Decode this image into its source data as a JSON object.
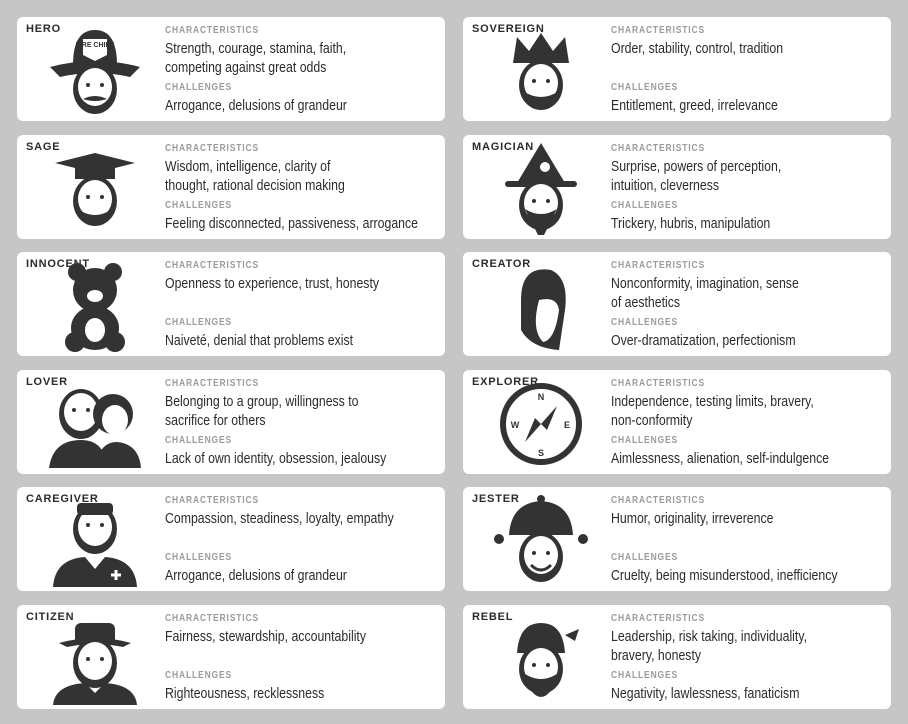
{
  "labels": {
    "characteristics": "CHARACTERISTICS",
    "challenges": "CHALLENGES"
  },
  "archetypes": [
    {
      "name": "HERO",
      "icon": "firefighter-icon",
      "characteristics": "Strength, courage, stamina, faith,\ncompeting against great odds",
      "challenges": "Arrogance, delusions of grandeur",
      "badge": "FIRE CHIEF"
    },
    {
      "name": "SOVEREIGN",
      "icon": "king-icon",
      "characteristics": "Order, stability, control, tradition",
      "challenges": "Entitlement, greed, irrelevance"
    },
    {
      "name": "SAGE",
      "icon": "graduate-icon",
      "characteristics": "Wisdom, intelligence, clarity of\nthought, rational decision making",
      "challenges": "Feeling disconnected, passiveness, arrogance"
    },
    {
      "name": "MAGICIAN",
      "icon": "wizard-icon",
      "characteristics": "Surprise, powers of perception,\nintuition, cleverness",
      "challenges": "Trickery, hubris, manipulation"
    },
    {
      "name": "INNOCENT",
      "icon": "teddy-bear-icon",
      "characteristics": "Openness to experience, trust, honesty",
      "challenges": "Naiveté, denial that problems exist"
    },
    {
      "name": "CREATOR",
      "icon": "artist-icon",
      "characteristics": "Nonconformity, imagination, sense\nof aesthetics",
      "challenges": "Over-dramatization, perfectionism"
    },
    {
      "name": "LOVER",
      "icon": "couple-icon",
      "characteristics": "Belonging to a group, willingness to\nsacrifice for others",
      "challenges": "Lack of own identity, obsession, jealousy"
    },
    {
      "name": "EXPLORER",
      "icon": "compass-icon",
      "characteristics": "Independence, testing limits, bravery,\nnon-conformity",
      "challenges": "Aimlessness, alienation, self-indulgence",
      "compass": [
        "N",
        "E",
        "S",
        "W"
      ]
    },
    {
      "name": "CAREGIVER",
      "icon": "nurse-icon",
      "characteristics": "Compassion, steadiness, loyalty, empathy",
      "challenges": "Arrogance, delusions of grandeur"
    },
    {
      "name": "JESTER",
      "icon": "jester-icon",
      "characteristics": "Humor, originality, irreverence",
      "challenges": "Cruelty, being misunderstood, inefficiency"
    },
    {
      "name": "CITIZEN",
      "icon": "man-in-hat-icon",
      "characteristics": "Fairness, stewardship, accountability",
      "challenges": "Righteousness, recklessness"
    },
    {
      "name": "REBEL",
      "icon": "bandana-icon",
      "characteristics": "Leadership, risk taking, individuality,\nbravery, honesty",
      "challenges": "Negativity, lawlessness, fanaticism"
    }
  ],
  "colors": {
    "background": "#c6c6c6",
    "card": "#ffffff",
    "icon": "#333333",
    "label": "#9b9b9b"
  }
}
